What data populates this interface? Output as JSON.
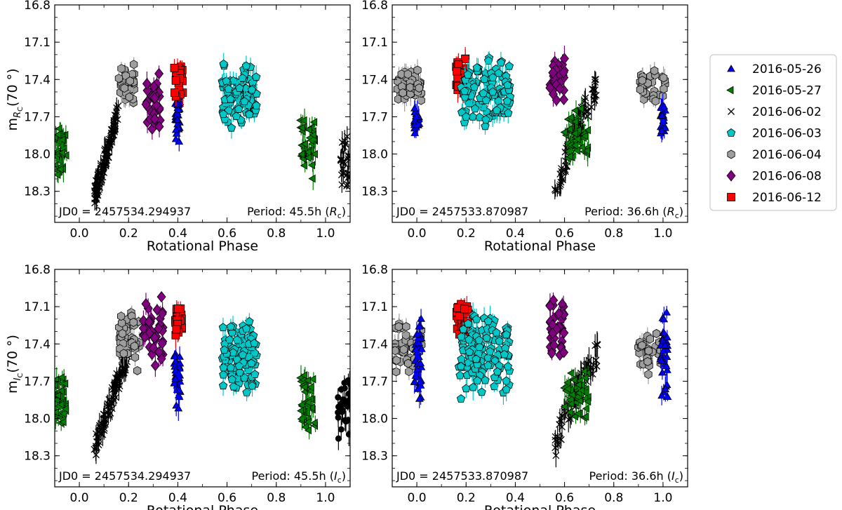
{
  "chart_data": {
    "type": "scatter",
    "figure_title": "",
    "x_domain": [
      -0.1,
      1.1
    ],
    "y_domain_inverted": [
      18.55,
      16.8
    ],
    "series": [
      {
        "name": "2016-05-26",
        "marker": "triangle-up",
        "color": "#0000ff"
      },
      {
        "name": "2016-05-27",
        "marker": "triangle-left",
        "color": "#008000"
      },
      {
        "name": "2016-06-02",
        "marker": "x",
        "color": "#000000"
      },
      {
        "name": "2016-06-03",
        "marker": "pentagon",
        "color": "#00c8c8"
      },
      {
        "name": "2016-06-04",
        "marker": "hexagon",
        "color": "#9e9e9e"
      },
      {
        "name": "2016-06-08",
        "marker": "diamond",
        "color": "#800080"
      },
      {
        "name": "2016-06-12",
        "marker": "square",
        "color": "#ff0000"
      }
    ],
    "legend": {
      "placement": "right",
      "entries": [
        "2016-05-26",
        "2016-05-27",
        "2016-06-02",
        "2016-06-03",
        "2016-06-04",
        "2016-06-08",
        "2016-06-12"
      ]
    },
    "panels": [
      {
        "id": "rc-45",
        "ylabel_base": "m",
        "ylabel_sub": "R",
        "ylabel_subsub": "C",
        "ylabel_tail": "(70 °)",
        "show_ylabel": true,
        "xlabel": "Rotational Phase",
        "xticks": [
          "0.0",
          "0.2",
          "0.4",
          "0.6",
          "0.8",
          "1.0"
        ],
        "xtick_values": [
          0.0,
          0.2,
          0.4,
          0.6,
          0.8,
          1.0
        ],
        "yticks": [
          "16.8",
          "17.1",
          "17.4",
          "17.7",
          "18.0",
          "18.3"
        ],
        "ytick_values": [
          16.8,
          17.1,
          17.4,
          17.7,
          18.0,
          18.3
        ],
        "jd0_text": "JD0 = 2457534.294937",
        "period_text": "Period: 45.5h (",
        "period_band": "R",
        "period_band_sub": "c",
        "clusters": [
          {
            "series": 1,
            "x": [
              -0.1,
              -0.05
            ],
            "y": [
              17.65,
              18.2
            ],
            "center": 17.95,
            "n": 40
          },
          {
            "series": 2,
            "x": [
              0.06,
              0.16
            ],
            "y": [
              17.65,
              18.35
            ],
            "trend": "down",
            "n": 90
          },
          {
            "series": 4,
            "x": [
              0.16,
              0.225
            ],
            "y": [
              17.25,
              17.6
            ],
            "n": 45
          },
          {
            "series": 5,
            "x": [
              0.27,
              0.33
            ],
            "y": [
              17.35,
              17.85
            ],
            "n": 35
          },
          {
            "series": 0,
            "x": [
              0.39,
              0.41
            ],
            "y": [
              17.45,
              17.95
            ],
            "n": 35
          },
          {
            "series": 6,
            "x": [
              0.385,
              0.42
            ],
            "y": [
              17.2,
              17.55
            ],
            "n": 22
          },
          {
            "series": 3,
            "x": [
              0.58,
              0.72
            ],
            "y": [
              17.25,
              17.8
            ],
            "n": 110
          },
          {
            "series": 1,
            "x": [
              0.9,
              0.96
            ],
            "y": [
              17.65,
              18.2
            ],
            "center": 17.95,
            "n": 40
          },
          {
            "series": 2,
            "x": [
              1.06,
              1.1
            ],
            "y": [
              17.8,
              18.35
            ],
            "n": 25
          }
        ]
      },
      {
        "id": "rc-36",
        "ylabel_base": "",
        "ylabel_sub": "",
        "ylabel_subsub": "",
        "ylabel_tail": "",
        "show_ylabel": false,
        "xlabel": "Rotational Phase",
        "xticks": [
          "0.0",
          "0.2",
          "0.4",
          "0.6",
          "0.8",
          "1.0"
        ],
        "xtick_values": [
          0.0,
          0.2,
          0.4,
          0.6,
          0.8,
          1.0
        ],
        "yticks": [
          "16.8",
          "17.1",
          "17.4",
          "17.7",
          "18.0",
          "18.3"
        ],
        "ytick_values": [
          16.8,
          17.1,
          17.4,
          17.7,
          18.0,
          18.3
        ],
        "jd0_text": "JD0 = 2457533.870987",
        "period_text": "Period: 36.6h (",
        "period_band": "R",
        "period_band_sub": "c",
        "clusters": [
          {
            "series": 4,
            "x": [
              -0.08,
              0.02
            ],
            "y": [
              17.3,
              17.6
            ],
            "n": 45
          },
          {
            "series": 0,
            "x": [
              -0.01,
              0.01
            ],
            "y": [
              17.6,
              17.85
            ],
            "n": 25
          },
          {
            "series": 6,
            "x": [
              0.16,
              0.21
            ],
            "y": [
              17.2,
              17.55
            ],
            "n": 30
          },
          {
            "series": 3,
            "x": [
              0.18,
              0.38
            ],
            "y": [
              17.2,
              17.8
            ],
            "n": 110
          },
          {
            "series": 5,
            "x": [
              0.54,
              0.6
            ],
            "y": [
              17.15,
              17.6
            ],
            "n": 35
          },
          {
            "series": 2,
            "x": [
              0.56,
              0.73
            ],
            "y": [
              17.45,
              18.35
            ],
            "trend": "up",
            "n": 70
          },
          {
            "series": 1,
            "x": [
              0.6,
              0.7
            ],
            "y": [
              17.6,
              18.1
            ],
            "n": 45
          },
          {
            "series": 4,
            "x": [
              0.9,
              1.02
            ],
            "y": [
              17.3,
              17.6
            ],
            "n": 30
          },
          {
            "series": 0,
            "x": [
              0.99,
              1.01
            ],
            "y": [
              17.55,
              17.85
            ],
            "n": 25
          }
        ]
      },
      {
        "id": "ic-45",
        "ylabel_base": "m",
        "ylabel_sub": "I",
        "ylabel_subsub": "C",
        "ylabel_tail": "(70 °)",
        "show_ylabel": true,
        "xlabel": "Rotational Phase",
        "xticks": [
          "0.0",
          "0.2",
          "0.4",
          "0.6",
          "0.8",
          "1.0"
        ],
        "xtick_values": [
          0.0,
          0.2,
          0.4,
          0.6,
          0.8,
          1.0
        ],
        "yticks": [
          "16.8",
          "17.1",
          "17.4",
          "17.7",
          "18.0",
          "18.3"
        ],
        "ytick_values": [
          16.8,
          17.1,
          17.4,
          17.7,
          18.0,
          18.3
        ],
        "jd0_text": "JD0 = 2457534.294937",
        "period_text": "Period: 45.5h (",
        "period_band": "I",
        "period_band_sub": "c",
        "clusters": [
          {
            "series": 1,
            "x": [
              -0.1,
              -0.05
            ],
            "y": [
              17.55,
              18.1
            ],
            "center": 17.85,
            "n": 40
          },
          {
            "series": 2,
            "x": [
              0.06,
              0.2
            ],
            "y": [
              17.45,
              18.25
            ],
            "trend": "down",
            "n": 90
          },
          {
            "series": 4,
            "x": [
              0.16,
              0.25
            ],
            "y": [
              17.1,
              17.65
            ],
            "n": 45
          },
          {
            "series": 5,
            "x": [
              0.26,
              0.34
            ],
            "y": [
              17.0,
              17.6
            ],
            "n": 40
          },
          {
            "series": 0,
            "x": [
              0.385,
              0.41
            ],
            "y": [
              17.4,
              17.95
            ],
            "n": 35
          },
          {
            "series": 6,
            "x": [
              0.39,
              0.42
            ],
            "y": [
              17.05,
              17.35
            ],
            "n": 22
          },
          {
            "series": 3,
            "x": [
              0.58,
              0.72
            ],
            "y": [
              17.2,
              17.85
            ],
            "n": 110
          },
          {
            "series": 1,
            "x": [
              0.9,
              0.96
            ],
            "y": [
              17.55,
              18.1
            ],
            "center": 17.85,
            "n": 40
          },
          {
            "series": 2,
            "x": [
              1.05,
              1.1
            ],
            "y": [
              17.55,
              18.25
            ],
            "filled": true,
            "n": 25
          }
        ]
      },
      {
        "id": "ic-36",
        "ylabel_base": "",
        "ylabel_sub": "",
        "ylabel_subsub": "",
        "ylabel_tail": "",
        "show_ylabel": false,
        "xlabel": "Rotational Phase",
        "xticks": [
          "0.0",
          "0.2",
          "0.4",
          "0.6",
          "0.8",
          "1.0"
        ],
        "xtick_values": [
          0.0,
          0.2,
          0.4,
          0.6,
          0.8,
          1.0
        ],
        "yticks": [
          "16.8",
          "17.1",
          "17.4",
          "17.7",
          "18.0",
          "18.3"
        ],
        "ytick_values": [
          16.8,
          17.1,
          17.4,
          17.7,
          18.0,
          18.3
        ],
        "jd0_text": "JD0 = 2457533.870987",
        "period_text": "Period: 36.6h (",
        "period_band": "I",
        "period_band_sub": "c",
        "clusters": [
          {
            "series": 4,
            "x": [
              -0.09,
              0.02
            ],
            "y": [
              17.2,
              17.65
            ],
            "n": 45
          },
          {
            "series": 0,
            "x": [
              -0.01,
              0.02
            ],
            "y": [
              17.1,
              17.9
            ],
            "n": 35
          },
          {
            "series": 6,
            "x": [
              0.16,
              0.21
            ],
            "y": [
              17.05,
              17.35
            ],
            "n": 30
          },
          {
            "series": 3,
            "x": [
              0.17,
              0.38
            ],
            "y": [
              17.1,
              17.85
            ],
            "n": 120
          },
          {
            "series": 5,
            "x": [
              0.54,
              0.6
            ],
            "y": [
              17.0,
              17.55
            ],
            "n": 40
          },
          {
            "series": 2,
            "x": [
              0.56,
              0.74
            ],
            "y": [
              17.45,
              18.25
            ],
            "trend": "up",
            "n": 70
          },
          {
            "series": 1,
            "x": [
              0.6,
              0.7
            ],
            "y": [
              17.55,
              18.05
            ],
            "n": 50
          },
          {
            "series": 4,
            "x": [
              0.9,
              1.02
            ],
            "y": [
              17.3,
              17.65
            ],
            "n": 30
          },
          {
            "series": 0,
            "x": [
              0.99,
              1.02
            ],
            "y": [
              17.1,
              17.9
            ],
            "n": 35
          }
        ]
      }
    ]
  }
}
